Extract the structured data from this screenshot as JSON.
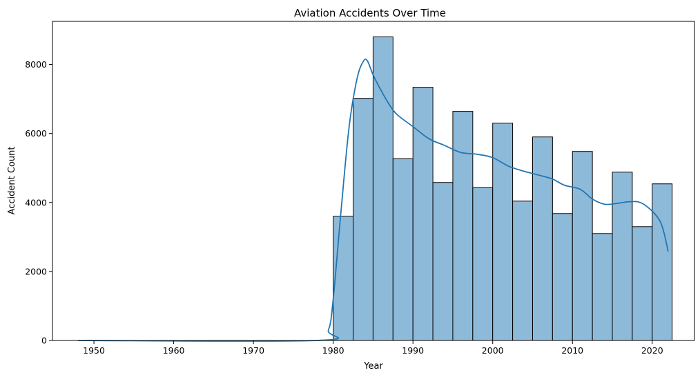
{
  "chart_data": {
    "type": "bar",
    "title": "Aviation Accidents Over Time",
    "xlabel": "Year",
    "ylabel": "Accident Count",
    "xlim": [
      1944.8,
      2025.3
    ],
    "ylim": [
      0,
      9250
    ],
    "x_ticks": [
      1950,
      1960,
      1970,
      1980,
      1990,
      2000,
      2010,
      2020
    ],
    "y_ticks": [
      0,
      2000,
      4000,
      6000,
      8000
    ],
    "bar_color": "#8ebad9",
    "bar_edge_color": "#000000",
    "kde_color": "#1f77b4",
    "grid": false,
    "bins": [
      {
        "start": 1980.0,
        "end": 1982.5,
        "count": 3600
      },
      {
        "start": 1982.5,
        "end": 1985.0,
        "count": 7020
      },
      {
        "start": 1985.0,
        "end": 1987.5,
        "count": 8800
      },
      {
        "start": 1987.5,
        "end": 1990.0,
        "count": 5270
      },
      {
        "start": 1990.0,
        "end": 1992.5,
        "count": 7340
      },
      {
        "start": 1992.5,
        "end": 1995.0,
        "count": 4580
      },
      {
        "start": 1995.0,
        "end": 1997.5,
        "count": 6640
      },
      {
        "start": 1997.5,
        "end": 2000.0,
        "count": 4430
      },
      {
        "start": 2000.0,
        "end": 2002.5,
        "count": 6300
      },
      {
        "start": 2002.5,
        "end": 2005.0,
        "count": 4040
      },
      {
        "start": 2005.0,
        "end": 2007.5,
        "count": 5900
      },
      {
        "start": 2007.5,
        "end": 2010.0,
        "count": 3680
      },
      {
        "start": 2010.0,
        "end": 2012.5,
        "count": 5480
      },
      {
        "start": 2012.5,
        "end": 2015.0,
        "count": 3100
      },
      {
        "start": 2015.0,
        "end": 2017.5,
        "count": 4880
      },
      {
        "start": 2017.5,
        "end": 2020.0,
        "count": 3300
      },
      {
        "start": 2020.0,
        "end": 2022.5,
        "count": 4540
      }
    ],
    "kde_curve": {
      "x": [
        1948,
        1978,
        1979.4,
        1980,
        1981,
        1982,
        1983,
        1983.8,
        1984.3,
        1985,
        1986,
        1987,
        1988,
        1990,
        1992,
        1994,
        1996,
        1998,
        2000,
        2002,
        2004,
        2006,
        2007.5,
        2009,
        2011,
        2012.5,
        2014,
        2015.5,
        2017,
        2018.5,
        2020,
        2021,
        2021.5,
        2022
      ],
      "y": [
        0,
        0,
        300,
        1200,
        3800,
        6200,
        7600,
        8100,
        8100,
        7700,
        7250,
        6850,
        6550,
        6200,
        5850,
        5650,
        5450,
        5400,
        5300,
        5050,
        4900,
        4780,
        4680,
        4500,
        4380,
        4100,
        3950,
        3970,
        4020,
        4000,
        3750,
        3450,
        3100,
        2580
      ]
    }
  }
}
